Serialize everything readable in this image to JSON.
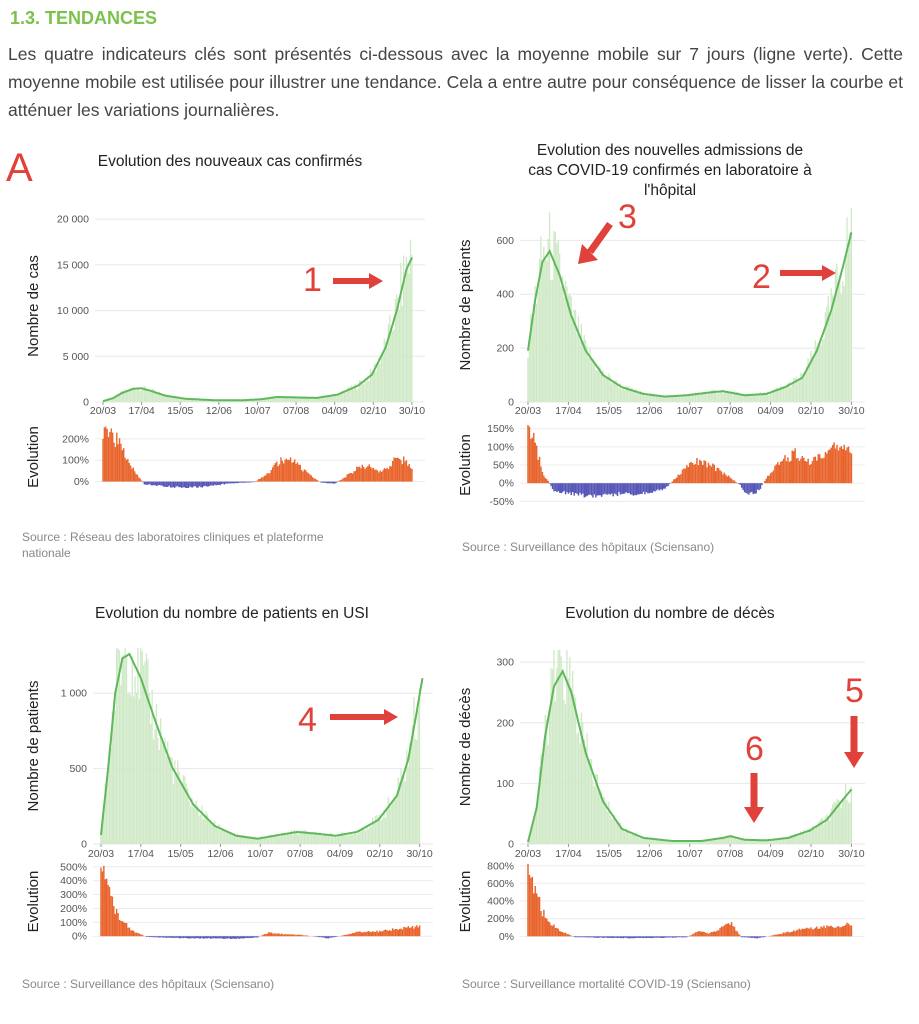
{
  "heading": "1.3. TENDANCES",
  "intro": "Les quatre indicateurs clés sont présentés ci-dessous avec la moyenne mobile sur 7 jours (ligne verte). Cette moyenne mobile est utilisée pour illustrer une tendance. Cela a entre autre pour conséquence de lisser la courbe et atténuer les variations journalières.",
  "panel_label": "A",
  "colors": {
    "heading": "#7cc14a",
    "line": "#5fb85a",
    "bars": "#cfe9c6",
    "pos": "#e8642c",
    "neg": "#5656b8",
    "arrow": "#e0413a"
  },
  "chart_data": [
    {
      "type": "bar",
      "title": "Evolution des nouveaux cas confirmés",
      "ylabel": "Nombre de cas",
      "ylim": [
        0,
        21000
      ],
      "yticks": [
        "0",
        "5 000",
        "10 000",
        "15 000",
        "20 000"
      ],
      "ytick_values": [
        0,
        5000,
        10000,
        15000,
        20000
      ],
      "xticks": [
        "20/03",
        "17/04",
        "15/05",
        "12/06",
        "10/07",
        "07/08",
        "04/09",
        "02/10",
        "30/10"
      ],
      "moving_average": [
        {
          "d": 0,
          "v": 100
        },
        {
          "d": 7,
          "v": 400
        },
        {
          "d": 14,
          "v": 1000
        },
        {
          "d": 22,
          "v": 1450
        },
        {
          "d": 28,
          "v": 1500
        },
        {
          "d": 35,
          "v": 1200
        },
        {
          "d": 45,
          "v": 700
        },
        {
          "d": 60,
          "v": 350
        },
        {
          "d": 80,
          "v": 200
        },
        {
          "d": 100,
          "v": 180
        },
        {
          "d": 115,
          "v": 300
        },
        {
          "d": 126,
          "v": 550
        },
        {
          "d": 140,
          "v": 500
        },
        {
          "d": 155,
          "v": 450
        },
        {
          "d": 170,
          "v": 800
        },
        {
          "d": 185,
          "v": 1800
        },
        {
          "d": 195,
          "v": 3000
        },
        {
          "d": 205,
          "v": 6000
        },
        {
          "d": 213,
          "v": 10000
        },
        {
          "d": 220,
          "v": 14500
        },
        {
          "d": 224,
          "v": 15800
        }
      ],
      "annotation": "1",
      "evolution": {
        "ylabel": "Evolution",
        "ylim": [
          -30,
          260
        ],
        "yticks": [
          "0%",
          "100%",
          "200%"
        ],
        "ytick_values": [
          0,
          100,
          200
        ],
        "values": [
          {
            "d": 0,
            "v": 250
          },
          {
            "d": 6,
            "v": 235
          },
          {
            "d": 12,
            "v": 170
          },
          {
            "d": 18,
            "v": 110
          },
          {
            "d": 24,
            "v": 40
          },
          {
            "d": 30,
            "v": -12
          },
          {
            "d": 45,
            "v": -22
          },
          {
            "d": 60,
            "v": -28
          },
          {
            "d": 75,
            "v": -22
          },
          {
            "d": 90,
            "v": -10
          },
          {
            "d": 110,
            "v": -2
          },
          {
            "d": 120,
            "v": 40
          },
          {
            "d": 128,
            "v": 95
          },
          {
            "d": 138,
            "v": 100
          },
          {
            "d": 148,
            "v": 40
          },
          {
            "d": 158,
            "v": -4
          },
          {
            "d": 168,
            "v": -10
          },
          {
            "d": 175,
            "v": 20
          },
          {
            "d": 185,
            "v": 65
          },
          {
            "d": 193,
            "v": 75
          },
          {
            "d": 200,
            "v": 40
          },
          {
            "d": 205,
            "v": 60
          },
          {
            "d": 212,
            "v": 100
          },
          {
            "d": 218,
            "v": 100
          },
          {
            "d": 224,
            "v": 70
          },
          {
            "d": 230,
            "v": 50
          }
        ]
      },
      "source": "Source : Réseau des laboratoires cliniques et plateforme nationale"
    },
    {
      "type": "bar",
      "title": "Evolution des nouvelles admissions de cas COVID-19 confirmés en laboratoire à l'hôpital",
      "ylabel": "Nombre de patients",
      "ylim": [
        0,
        720
      ],
      "yticks": [
        "0",
        "200",
        "400",
        "600"
      ],
      "ytick_values": [
        0,
        200,
        400,
        600
      ],
      "xticks": [
        "20/03",
        "17/04",
        "15/05",
        "12/06",
        "10/07",
        "07/08",
        "04/09",
        "02/10",
        "30/10"
      ],
      "moving_average": [
        {
          "d": 0,
          "v": 190
        },
        {
          "d": 5,
          "v": 380
        },
        {
          "d": 10,
          "v": 520
        },
        {
          "d": 15,
          "v": 560
        },
        {
          "d": 22,
          "v": 470
        },
        {
          "d": 30,
          "v": 320
        },
        {
          "d": 40,
          "v": 190
        },
        {
          "d": 52,
          "v": 100
        },
        {
          "d": 65,
          "v": 55
        },
        {
          "d": 80,
          "v": 30
        },
        {
          "d": 95,
          "v": 20
        },
        {
          "d": 110,
          "v": 25
        },
        {
          "d": 125,
          "v": 35
        },
        {
          "d": 135,
          "v": 40
        },
        {
          "d": 150,
          "v": 25
        },
        {
          "d": 165,
          "v": 30
        },
        {
          "d": 178,
          "v": 55
        },
        {
          "d": 190,
          "v": 90
        },
        {
          "d": 200,
          "v": 190
        },
        {
          "d": 210,
          "v": 340
        },
        {
          "d": 218,
          "v": 500
        },
        {
          "d": 224,
          "v": 630
        }
      ],
      "annotations": [
        "3",
        "2"
      ],
      "evolution": {
        "ylabel": "Evolution",
        "ylim": [
          -60,
          160
        ],
        "yticks": [
          "-50%",
          "0%",
          "50%",
          "100%",
          "150%"
        ],
        "ytick_values": [
          -50,
          0,
          50,
          100,
          150
        ],
        "values": [
          {
            "d": 0,
            "v": 150
          },
          {
            "d": 5,
            "v": 110
          },
          {
            "d": 10,
            "v": 30
          },
          {
            "d": 18,
            "v": -20
          },
          {
            "d": 30,
            "v": -30
          },
          {
            "d": 45,
            "v": -35
          },
          {
            "d": 60,
            "v": -30
          },
          {
            "d": 80,
            "v": -28
          },
          {
            "d": 95,
            "v": -15
          },
          {
            "d": 110,
            "v": 45
          },
          {
            "d": 118,
            "v": 60
          },
          {
            "d": 126,
            "v": 50
          },
          {
            "d": 133,
            "v": 35
          },
          {
            "d": 140,
            "v": 15
          },
          {
            "d": 147,
            "v": -5
          },
          {
            "d": 152,
            "v": -35
          },
          {
            "d": 160,
            "v": -20
          },
          {
            "d": 166,
            "v": 20
          },
          {
            "d": 175,
            "v": 60
          },
          {
            "d": 185,
            "v": 80
          },
          {
            "d": 195,
            "v": 55
          },
          {
            "d": 205,
            "v": 75
          },
          {
            "d": 212,
            "v": 95
          },
          {
            "d": 220,
            "v": 90
          },
          {
            "d": 226,
            "v": 80
          }
        ]
      },
      "source": "Source : Surveillance des hôpitaux (Sciensano)"
    },
    {
      "type": "bar",
      "title": "Evolution du nombre de patients en USI",
      "ylabel": "Nombre de patients",
      "ylim": [
        0,
        1300
      ],
      "yticks": [
        "0",
        "500",
        "1 000"
      ],
      "ytick_values": [
        0,
        500,
        1000
      ],
      "xticks": [
        "20/03",
        "17/04",
        "15/05",
        "12/06",
        "10/07",
        "07/08",
        "04/09",
        "02/10",
        "30/10"
      ],
      "moving_average": [
        {
          "d": 0,
          "v": 60
        },
        {
          "d": 5,
          "v": 500
        },
        {
          "d": 10,
          "v": 1000
        },
        {
          "d": 15,
          "v": 1230
        },
        {
          "d": 20,
          "v": 1260
        },
        {
          "d": 28,
          "v": 1100
        },
        {
          "d": 38,
          "v": 820
        },
        {
          "d": 50,
          "v": 510
        },
        {
          "d": 65,
          "v": 260
        },
        {
          "d": 80,
          "v": 120
        },
        {
          "d": 95,
          "v": 55
        },
        {
          "d": 110,
          "v": 35
        },
        {
          "d": 125,
          "v": 60
        },
        {
          "d": 138,
          "v": 80
        },
        {
          "d": 150,
          "v": 70
        },
        {
          "d": 165,
          "v": 55
        },
        {
          "d": 180,
          "v": 80
        },
        {
          "d": 195,
          "v": 160
        },
        {
          "d": 208,
          "v": 320
        },
        {
          "d": 216,
          "v": 560
        },
        {
          "d": 222,
          "v": 880
        },
        {
          "d": 226,
          "v": 1100
        }
      ],
      "annotation": "4",
      "evolution": {
        "ylabel": "Evolution",
        "ylim": [
          -20,
          520
        ],
        "yticks": [
          "0%",
          "100%",
          "200%",
          "300%",
          "400%",
          "500%"
        ],
        "ytick_values": [
          0,
          100,
          200,
          300,
          400,
          500
        ],
        "values": [
          {
            "d": 0,
            "v": 490
          },
          {
            "d": 4,
            "v": 380
          },
          {
            "d": 8,
            "v": 240
          },
          {
            "d": 14,
            "v": 120
          },
          {
            "d": 22,
            "v": 40
          },
          {
            "d": 32,
            "v": -5
          },
          {
            "d": 50,
            "v": -12
          },
          {
            "d": 70,
            "v": -15
          },
          {
            "d": 95,
            "v": -18
          },
          {
            "d": 110,
            "v": -8
          },
          {
            "d": 118,
            "v": 25
          },
          {
            "d": 128,
            "v": 15
          },
          {
            "d": 140,
            "v": 10
          },
          {
            "d": 152,
            "v": -5
          },
          {
            "d": 160,
            "v": -15
          },
          {
            "d": 170,
            "v": 5
          },
          {
            "d": 180,
            "v": 30
          },
          {
            "d": 195,
            "v": 35
          },
          {
            "d": 210,
            "v": 55
          },
          {
            "d": 220,
            "v": 65
          },
          {
            "d": 226,
            "v": 70
          }
        ]
      },
      "source": "Source : Surveillance des hôpitaux (Sciensano)"
    },
    {
      "type": "bar",
      "title": "Evolution du nombre de décès",
      "ylabel": "Nombre de décès",
      "ylim": [
        0,
        320
      ],
      "yticks": [
        "0",
        "100",
        "200",
        "300"
      ],
      "ytick_values": [
        0,
        100,
        200,
        300
      ],
      "xticks": [
        "20/03",
        "17/04",
        "15/05",
        "12/06",
        "10/07",
        "07/08",
        "04/09",
        "02/10",
        "30/10"
      ],
      "moving_average": [
        {
          "d": 0,
          "v": 3
        },
        {
          "d": 6,
          "v": 60
        },
        {
          "d": 12,
          "v": 180
        },
        {
          "d": 18,
          "v": 260
        },
        {
          "d": 24,
          "v": 285
        },
        {
          "d": 30,
          "v": 250
        },
        {
          "d": 40,
          "v": 150
        },
        {
          "d": 52,
          "v": 70
        },
        {
          "d": 65,
          "v": 25
        },
        {
          "d": 80,
          "v": 10
        },
        {
          "d": 100,
          "v": 5
        },
        {
          "d": 120,
          "v": 5
        },
        {
          "d": 135,
          "v": 10
        },
        {
          "d": 140,
          "v": 13
        },
        {
          "d": 150,
          "v": 7
        },
        {
          "d": 165,
          "v": 6
        },
        {
          "d": 180,
          "v": 10
        },
        {
          "d": 195,
          "v": 22
        },
        {
          "d": 207,
          "v": 40
        },
        {
          "d": 217,
          "v": 70
        },
        {
          "d": 224,
          "v": 90
        }
      ],
      "annotations": [
        "6",
        "5"
      ],
      "evolution": {
        "ylabel": "Evolution",
        "ylim": [
          -30,
          820
        ],
        "yticks": [
          "0%",
          "200%",
          "400%",
          "600%",
          "800%"
        ],
        "ytick_values": [
          0,
          200,
          400,
          600,
          800
        ],
        "values": [
          {
            "d": 0,
            "v": 800
          },
          {
            "d": 5,
            "v": 520
          },
          {
            "d": 10,
            "v": 280
          },
          {
            "d": 16,
            "v": 140
          },
          {
            "d": 24,
            "v": 50
          },
          {
            "d": 32,
            "v": -8
          },
          {
            "d": 50,
            "v": -15
          },
          {
            "d": 70,
            "v": -20
          },
          {
            "d": 95,
            "v": -15
          },
          {
            "d": 110,
            "v": -10
          },
          {
            "d": 118,
            "v": 60
          },
          {
            "d": 125,
            "v": 30
          },
          {
            "d": 135,
            "v": 100
          },
          {
            "d": 140,
            "v": 160
          },
          {
            "d": 148,
            "v": -10
          },
          {
            "d": 160,
            "v": -20
          },
          {
            "d": 175,
            "v": 30
          },
          {
            "d": 190,
            "v": 90
          },
          {
            "d": 205,
            "v": 110
          },
          {
            "d": 216,
            "v": 120
          },
          {
            "d": 224,
            "v": 140
          }
        ]
      },
      "source": "Source : Surveillance mortalité COVID-19 (Sciensano)"
    }
  ]
}
